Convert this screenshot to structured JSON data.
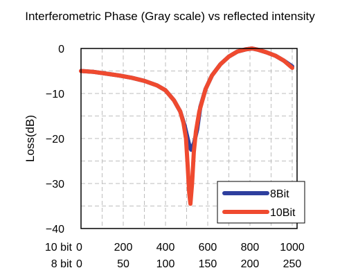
{
  "chart_data": {
    "type": "line",
    "title": "Interferometric Phase (Gray scale) vs reflected intensity",
    "ylabel": "Loss(dB)",
    "xlabel": "",
    "xlim": [
      0,
      1023
    ],
    "ylim": [
      -40,
      0
    ],
    "yticks": [
      0,
      -10,
      -20,
      -30,
      -40
    ],
    "ytick_labels": [
      "0",
      "−10",
      "−20",
      "−30",
      "−40"
    ],
    "grid": true,
    "legend_position": "bottom-right",
    "x_axes": [
      {
        "label": "10 bit",
        "ticks": [
          0,
          200,
          400,
          600,
          800,
          1000
        ],
        "labels": [
          "0",
          "200",
          "400",
          "600",
          "800",
          "1000"
        ]
      },
      {
        "label": "8 bit",
        "ticks": [
          0,
          200,
          400,
          600,
          800,
          1000
        ],
        "labels": [
          "0",
          "50",
          "100",
          "150",
          "200",
          "250"
        ]
      }
    ],
    "series": [
      {
        "name": "8Bit",
        "color": "#2e3f9e",
        "x": [
          0,
          60,
          120,
          180,
          240,
          300,
          360,
          400,
          440,
          470,
          490,
          505,
          515,
          522,
          535,
          550,
          565,
          590,
          620,
          660,
          700,
          740,
          780,
          810,
          840,
          880,
          920,
          960,
          1000
        ],
        "y": [
          -5.0,
          -5.2,
          -5.6,
          -6.0,
          -6.5,
          -7.2,
          -8.2,
          -9.3,
          -11.5,
          -14.0,
          -17.0,
          -20.0,
          -22.0,
          -22.5,
          -21.0,
          -18.0,
          -13.0,
          -9.0,
          -6.0,
          -3.5,
          -1.8,
          -0.7,
          -0.2,
          0.0,
          -0.3,
          -0.9,
          -1.6,
          -2.7,
          -4.0
        ]
      },
      {
        "name": "10Bit",
        "color": "#ef4a2f",
        "x": [
          0,
          60,
          120,
          180,
          240,
          300,
          360,
          400,
          440,
          470,
          485,
          497,
          505,
          512,
          518,
          526,
          534,
          544,
          560,
          590,
          620,
          660,
          700,
          740,
          780,
          810,
          840,
          880,
          920,
          960,
          1000
        ],
        "y": [
          -5.0,
          -5.2,
          -5.6,
          -6.0,
          -6.5,
          -7.2,
          -8.2,
          -9.3,
          -11.5,
          -14.0,
          -16.5,
          -20.0,
          -26.0,
          -32.0,
          -34.5,
          -30.0,
          -23.0,
          -18.5,
          -14.0,
          -9.0,
          -6.0,
          -3.5,
          -1.8,
          -0.7,
          -0.2,
          0.0,
          -0.3,
          -0.9,
          -1.6,
          -2.7,
          -4.3
        ]
      }
    ]
  }
}
